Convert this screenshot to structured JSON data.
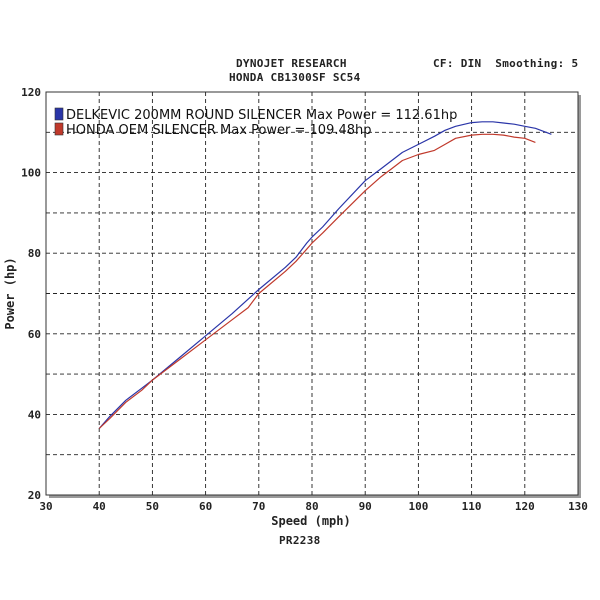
{
  "header": {
    "title": "DYNOJET RESEARCH",
    "subtitle": "HONDA CB1300SF SC54",
    "settings": "CF: DIN  Smoothing: 5"
  },
  "footer": {
    "run_id": "PR2238"
  },
  "chart_data": {
    "type": "line",
    "xlabel": "Speed (mph)",
    "ylabel": "Power (hp)",
    "xlim": [
      30,
      130
    ],
    "ylim": [
      20,
      120
    ],
    "xticks": [
      30,
      40,
      50,
      60,
      70,
      80,
      90,
      100,
      110,
      120,
      130
    ],
    "yticks": [
      20,
      40,
      60,
      80,
      100,
      120
    ],
    "grid": true,
    "legend_position": "top-left",
    "series": [
      {
        "name": "DELKEVIC 200MM ROUND SILENCER Max Power = 112.61hp",
        "color": "#2a35a8",
        "x": [
          40,
          42,
          45,
          48,
          50,
          55,
          60,
          65,
          70,
          75,
          77,
          79,
          80,
          82,
          85,
          90,
          93,
          95,
          97,
          100,
          103,
          105,
          107,
          110,
          112,
          114,
          116,
          118,
          120,
          122,
          124,
          125
        ],
        "y": [
          36.5,
          39.5,
          43.5,
          46.5,
          48.5,
          54,
          59.5,
          65,
          71,
          76.5,
          79,
          82.5,
          84,
          86.5,
          91,
          98,
          101,
          103,
          105,
          107,
          109,
          110.5,
          111.5,
          112.4,
          112.6,
          112.6,
          112.3,
          112,
          111.5,
          111,
          110,
          109.5
        ]
      },
      {
        "name": "HONDA OEM SILENCER Max Power = 109.48hp",
        "color": "#c0392b",
        "x": [
          40,
          42,
          45,
          48,
          50,
          55,
          60,
          65,
          68,
          70,
          75,
          77,
          79,
          80,
          82,
          85,
          90,
          93,
          95,
          97,
          100,
          103,
          105,
          107,
          110,
          112,
          114,
          116,
          118,
          120,
          122
        ],
        "y": [
          36.5,
          39,
          43,
          46,
          48.5,
          53.5,
          58.5,
          63.5,
          66.5,
          70,
          75.5,
          78,
          81,
          82.5,
          85,
          89,
          95.5,
          99,
          101,
          103,
          104.5,
          105.5,
          107,
          108.5,
          109.3,
          109.5,
          109.5,
          109.3,
          108.8,
          108.5,
          107.5
        ]
      }
    ]
  }
}
